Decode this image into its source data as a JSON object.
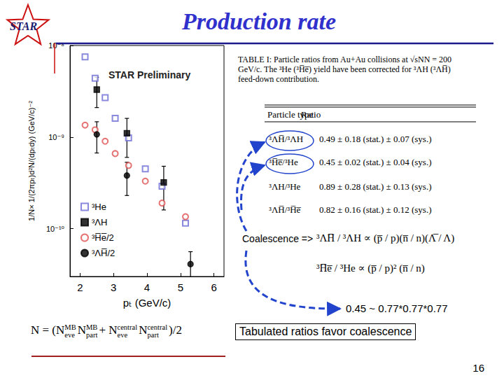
{
  "slide": {
    "title": "Production rate",
    "logo": "STAR",
    "page": "16"
  },
  "chart_data": {
    "type": "scatter",
    "title": "STAR Preliminary",
    "x_label": "pₜ (GeV/c)",
    "y_label": "1/N× 1/(2πpₜ)d²N/(dpₜdy) (GeV/c)⁻²",
    "log": "y",
    "grid": false,
    "legend": "lower-left",
    "xlim": [
      1.7,
      6.3
    ],
    "xticks": [
      2,
      3,
      4,
      5,
      6
    ],
    "ylim": [
      3e-11,
      1e-08
    ],
    "yticks": [
      {
        "value": 1e-10,
        "label": "10⁻¹⁰"
      },
      {
        "value": 1e-09,
        "label": "10⁻⁹"
      },
      {
        "value": 1e-08,
        "label": "10⁻⁸"
      }
    ],
    "series": [
      {
        "name": "³He",
        "color": "#6b6bd6",
        "marker": "open_square",
        "x": [
          2.15,
          2.45,
          2.75,
          3.05,
          3.45,
          3.95,
          4.45,
          5.15
        ],
        "values": [
          7.5e-09,
          4.4e-09,
          2.7e-09,
          1.6e-09,
          9.8e-10,
          4.5e-10,
          2.9e-10,
          1.15e-10
        ]
      },
      {
        "name": "³ΛH",
        "color": "#000000",
        "marker": "filled_square",
        "x": [
          2.5,
          3.4,
          4.5
        ],
        "values": [
          3.3e-09,
          1.1e-09,
          3.2e-10
        ],
        "errors": [
          1.2e-09,
          5e-10,
          1.6e-10
        ]
      },
      {
        "name": "³H̅e̅/2",
        "color": "#e05050",
        "marker": "open_circle",
        "x": [
          2.15,
          2.45,
          2.75,
          3.05,
          3.45,
          3.95,
          4.45,
          5.15
        ],
        "values": [
          1.35e-09,
          1.2e-09,
          9e-10,
          6.6e-10,
          4.9e-10,
          3.3e-10,
          1.9e-10,
          1.35e-10
        ]
      },
      {
        "name": "³ΛH̅/2",
        "color": "#000000",
        "marker": "filled_circle",
        "x": [
          2.5,
          3.4,
          5.3
        ],
        "values": [
          1.07e-09,
          3.8e-10,
          4.1e-11
        ],
        "errors": [
          4e-10,
          1.5e-10,
          1.5e-11
        ]
      }
    ]
  },
  "table": {
    "caption": "TABLE I: Particle ratios from Au+Au collisions at √sNN = 200 GeV/c. The ³He (³H̅e̅) yield have been corrected for ³ΛH (³ΛH̅) feed-down contribution.",
    "header": [
      "Particle type",
      "Ratio"
    ],
    "rows": [
      [
        "³ΛH̅/³ΛH",
        "0.49 ± 0.18 (stat.) ± 0.07 (sys.)"
      ],
      [
        "³H̅e̅/³He",
        "0.45 ± 0.02 (stat.) ± 0.04 (sys.)"
      ],
      [
        "³ΛH/³He",
        "0.89 ± 0.28 (stat.) ± 0.13 (sys.)"
      ],
      [
        "³ΛH̅/³H̅e̅",
        "0.82 ± 0.16 (stat.) ± 0.12 (sys.)"
      ]
    ]
  },
  "annotations": {
    "coalescence": "Coalescence =>",
    "formulas": [
      "³ΛH̅ / ³ΛH ∝ (p̅ / p)(n̅ / n)(Λ̅ / Λ)",
      "³H̅e̅ / ³He ∝ (p̅ / p)² (n̅ / n)"
    ],
    "estimate": "0.45 ~ 0.77*0.77*0.77",
    "conclusion": "Tabulated ratios favor coalescence"
  },
  "normalization": [
    {
      "text": "N = ("
    },
    {
      "text": "N",
      "sup": "MB",
      "sub": "eve"
    },
    {
      "text": "N",
      "sup": "MB",
      "sub": "part"
    },
    {
      "text": "+ "
    },
    {
      "text": "N",
      "sup": "central",
      "sub": "eve"
    },
    {
      "text": "N",
      "sup": "central",
      "sub": "part"
    },
    {
      "text": ")/2"
    }
  ]
}
